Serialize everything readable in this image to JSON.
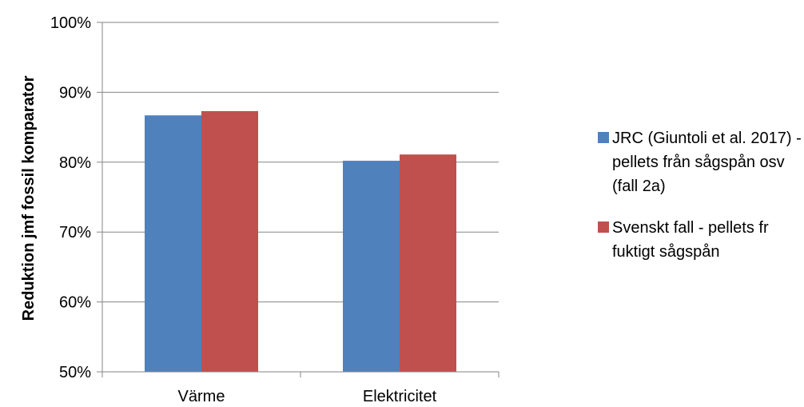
{
  "chart_data": {
    "type": "bar",
    "categories": [
      "Värme",
      "Elektricitet"
    ],
    "series": [
      {
        "name": "JRC (Giuntoli et al. 2017) - pellets från sågspån osv (fall 2a)",
        "values": [
          86.7,
          80.2
        ],
        "color": "#4f81bd"
      },
      {
        "name": "Svenskt fall - pellets fr fuktigt sågspån",
        "values": [
          87.3,
          81.1
        ],
        "color": "#c0504d"
      }
    ],
    "title": "",
    "xlabel": "",
    "ylabel": "Reduktion jmf fossil komparator",
    "ylim": [
      50,
      100
    ],
    "yticks": [
      "50%",
      "60%",
      "70%",
      "80%",
      "90%",
      "100%"
    ],
    "grid": true,
    "legend_position": "right"
  }
}
